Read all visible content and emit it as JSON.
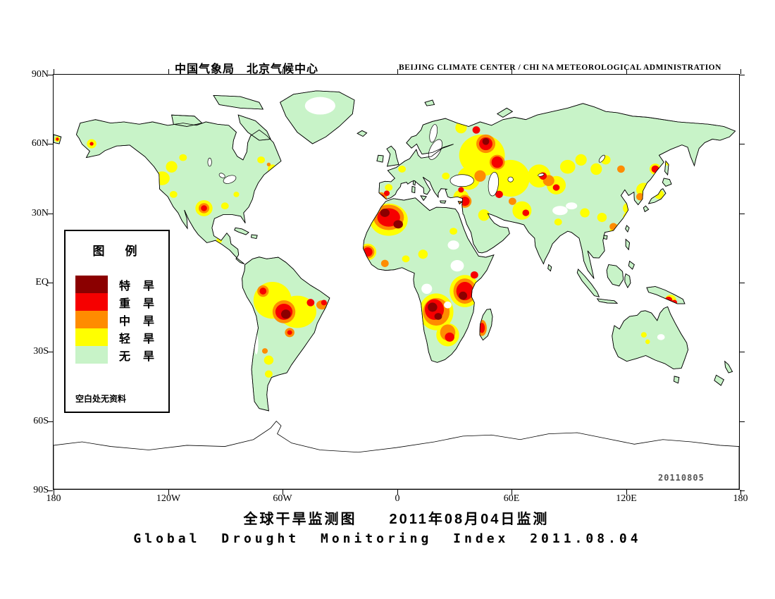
{
  "header": {
    "left": "中国气象局　北京气候中心",
    "right": "BEIJING CLIMATE CENTER / CHI NA METEOROLOGICAL ADMINISTRATION"
  },
  "map": {
    "datestamp": "20110805",
    "axis": {
      "lat_labels": [
        "90N",
        "60N",
        "30N",
        "EQ",
        "30S",
        "60S",
        "90S"
      ],
      "lon_labels": [
        "180",
        "120W",
        "60W",
        "0",
        "60E",
        "120E",
        "180"
      ]
    },
    "legend": {
      "title": "图　例",
      "note": "空白处无资料",
      "items": [
        {
          "label": "特　旱",
          "level": "extreme"
        },
        {
          "label": "重　旱",
          "level": "severe"
        },
        {
          "label": "中　旱",
          "level": "moderate"
        },
        {
          "label": "轻　旱",
          "level": "light"
        },
        {
          "label": "无　旱",
          "level": "none"
        }
      ]
    },
    "severity_colors": {
      "extreme": "#8b0000",
      "severe": "#f60000",
      "moderate": "#ff8c00",
      "light": "#ffff00",
      "none": "#c8f3c8"
    },
    "level_codes": {
      "L": "light",
      "M": "moderate",
      "S": "severe",
      "E": "extreme"
    },
    "drought_regions": [
      [
        2,
        28,
        1.5,
        1.2,
        "L"
      ],
      [
        2,
        28,
        0.8,
        0.7,
        "S"
      ],
      [
        20,
        30,
        2.5,
        2,
        "L"
      ],
      [
        20,
        30,
        1,
        0.8,
        "S"
      ],
      [
        57,
        45,
        4,
        3,
        "L"
      ],
      [
        62,
        40,
        3,
        2.5,
        "L"
      ],
      [
        68,
        36,
        2,
        1.5,
        "L"
      ],
      [
        55,
        58,
        5,
        4,
        "L"
      ],
      [
        57,
        59,
        1.5,
        1.2,
        "M"
      ],
      [
        63,
        52,
        2,
        1.5,
        "L"
      ],
      [
        79,
        58,
        4.5,
        3.5,
        "L"
      ],
      [
        79,
        58,
        2.8,
        2.2,
        "M"
      ],
      [
        79,
        58,
        1.6,
        1.3,
        "S"
      ],
      [
        90,
        57,
        2,
        1.5,
        "L"
      ],
      [
        96,
        52,
        1.5,
        1.2,
        "L"
      ],
      [
        74,
        70,
        2,
        1.5,
        "L"
      ],
      [
        87,
        72,
        1.5,
        1.2,
        "L"
      ],
      [
        109,
        37,
        2,
        1.5,
        "L"
      ],
      [
        115,
        41,
        2.5,
        2,
        "L"
      ],
      [
        113,
        39,
        1,
        0.8,
        "M"
      ],
      [
        115,
        98,
        10,
        8,
        "L"
      ],
      [
        128,
        103,
        10,
        7,
        "L"
      ],
      [
        110,
        94,
        3,
        2.5,
        "M"
      ],
      [
        110,
        94,
        1.8,
        1.5,
        "S"
      ],
      [
        121,
        103,
        6,
        5,
        "M"
      ],
      [
        121,
        103,
        4.5,
        3.5,
        "S"
      ],
      [
        122,
        104,
        2.5,
        2,
        "E"
      ],
      [
        135,
        99,
        2,
        1.6,
        "S"
      ],
      [
        141,
        100,
        3,
        2,
        "M"
      ],
      [
        142,
        99,
        1.5,
        1.2,
        "S"
      ],
      [
        124,
        112,
        2.5,
        2,
        "M"
      ],
      [
        124,
        112,
        1.3,
        1,
        "S"
      ],
      [
        113,
        124,
        2.5,
        2,
        "L"
      ],
      [
        113,
        130,
        2,
        1.6,
        "L"
      ],
      [
        116,
        135,
        1.5,
        1.2,
        "L"
      ],
      [
        111,
        120,
        1.5,
        1.2,
        "M"
      ],
      [
        176,
        63,
        10,
        7,
        "L"
      ],
      [
        176,
        62,
        8,
        5.5,
        "M"
      ],
      [
        176,
        62,
        6,
        4,
        "S"
      ],
      [
        174,
        60,
        2.5,
        1.8,
        "E"
      ],
      [
        181,
        65,
        2.5,
        1.8,
        "E"
      ],
      [
        172,
        53.5,
        3,
        2.4,
        "M"
      ],
      [
        172,
        53.5,
        2,
        1.6,
        "S"
      ],
      [
        175,
        51.5,
        1.5,
        1.2,
        "S"
      ],
      [
        176,
        49,
        2,
        1.5,
        "L"
      ],
      [
        165,
        77,
        4.5,
        3.6,
        "L"
      ],
      [
        165,
        77,
        3.5,
        2.8,
        "M"
      ],
      [
        165,
        77,
        2.5,
        2,
        "S"
      ],
      [
        174,
        82,
        2,
        1.6,
        "M"
      ],
      [
        185,
        80,
        2,
        1.5,
        "L"
      ],
      [
        194,
        78,
        2.5,
        2,
        "L"
      ],
      [
        210,
        68,
        2,
        1.5,
        "L"
      ],
      [
        201,
        103,
        9,
        8,
        "L"
      ],
      [
        201,
        103,
        7,
        6,
        "M"
      ],
      [
        200,
        102,
        5,
        4.5,
        "S"
      ],
      [
        199,
        101,
        2.5,
        2,
        "E"
      ],
      [
        202,
        105,
        2,
        1.5,
        "E"
      ],
      [
        207,
        113,
        6,
        5,
        "L"
      ],
      [
        207,
        112,
        4,
        3.5,
        "M"
      ],
      [
        208,
        114,
        2.5,
        2,
        "S"
      ],
      [
        216,
        94,
        8,
        7,
        "L"
      ],
      [
        216,
        94,
        6,
        5.5,
        "M"
      ],
      [
        216,
        94,
        4.5,
        4,
        "S"
      ],
      [
        215,
        96,
        2.2,
        1.8,
        "E"
      ],
      [
        221,
        87,
        2,
        1.6,
        "S"
      ],
      [
        225,
        110,
        2.5,
        3.5,
        "M"
      ],
      [
        225,
        110,
        1.5,
        2.2,
        "S"
      ],
      [
        183,
        41,
        2,
        1.5,
        "L"
      ],
      [
        206,
        44,
        2,
        1.5,
        "L"
      ],
      [
        214,
        50,
        1.5,
        1.2,
        "S"
      ],
      [
        225,
        35,
        12,
        9,
        "L"
      ],
      [
        240,
        45,
        10,
        8,
        "L"
      ],
      [
        218,
        45,
        6,
        5,
        "L"
      ],
      [
        214,
        23,
        3,
        2.5,
        "L"
      ],
      [
        227,
        30,
        5,
        4,
        "M"
      ],
      [
        227,
        30,
        3.5,
        2.8,
        "S"
      ],
      [
        227,
        29,
        1.8,
        1.5,
        "E"
      ],
      [
        222,
        24,
        2,
        1.6,
        "S"
      ],
      [
        233,
        38,
        4,
        3.2,
        "M"
      ],
      [
        233,
        38,
        3,
        2.5,
        "S"
      ],
      [
        224,
        44,
        3,
        2.5,
        "M"
      ],
      [
        214,
        53,
        4,
        3,
        "L"
      ],
      [
        216,
        55,
        3.5,
        2.8,
        "M"
      ],
      [
        216,
        55,
        2.5,
        2,
        "S"
      ],
      [
        234,
        52,
        2,
        1.6,
        "S"
      ],
      [
        226,
        61,
        3,
        2.5,
        "L"
      ],
      [
        255,
        44,
        6,
        5,
        "L"
      ],
      [
        264,
        48,
        5,
        4,
        "L"
      ],
      [
        257,
        44,
        2,
        1.6,
        "S"
      ],
      [
        264,
        49,
        1.8,
        1.4,
        "S"
      ],
      [
        260,
        46,
        3,
        2.4,
        "M"
      ],
      [
        246,
        59,
        5,
        4,
        "L"
      ],
      [
        248,
        60,
        1.8,
        1.4,
        "S"
      ],
      [
        241,
        55,
        2,
        1.6,
        "M"
      ],
      [
        270,
        40,
        4,
        3,
        "L"
      ],
      [
        277,
        37,
        3,
        2.5,
        "L"
      ],
      [
        285,
        41,
        3,
        2.5,
        "L"
      ],
      [
        290,
        37,
        2.5,
        2,
        "L"
      ],
      [
        298,
        41,
        2,
        1.6,
        "M"
      ],
      [
        316,
        41,
        3,
        2.4,
        "L"
      ],
      [
        316,
        41,
        2,
        1.6,
        "S"
      ],
      [
        323,
        37,
        3,
        2.5,
        "L"
      ],
      [
        330,
        41,
        2,
        1.6,
        "L"
      ],
      [
        340,
        38,
        2.5,
        2,
        "L"
      ],
      [
        346,
        36,
        3,
        2.5,
        "L"
      ],
      [
        350,
        40,
        2,
        1.6,
        "L"
      ],
      [
        310,
        50,
        4,
        3,
        "L"
      ],
      [
        308,
        53,
        2,
        1.6,
        "M"
      ],
      [
        318,
        52,
        2.5,
        2,
        "L"
      ],
      [
        302,
        58,
        3,
        2.5,
        "L"
      ],
      [
        296,
        68,
        4,
        3,
        "L"
      ],
      [
        297,
        69,
        1.8,
        1.4,
        "S"
      ],
      [
        294,
        66,
        2,
        1.6,
        "M"
      ],
      [
        302,
        62,
        3,
        2.5,
        "L"
      ],
      [
        288,
        62,
        2.5,
        2,
        "L"
      ],
      [
        279,
        60,
        2.5,
        2,
        "L"
      ],
      [
        265,
        64,
        2,
        1.5,
        "L"
      ],
      [
        292,
        76,
        2.4,
        2,
        "L"
      ],
      [
        292,
        76,
        1.6,
        1.3,
        "S"
      ],
      [
        286,
        88,
        1.4,
        1.1,
        "S"
      ],
      [
        324,
        98,
        3,
        2.4,
        "L"
      ],
      [
        323,
        98,
        2,
        1.6,
        "S"
      ],
      [
        326,
        99,
        1.5,
        1.2,
        "S"
      ],
      [
        310,
        113,
        1.5,
        1.2,
        "L"
      ],
      [
        312,
        116,
        1.2,
        1,
        "L"
      ]
    ]
  },
  "footer": {
    "title_cn": "全球干旱监测图　　2011年08月04日监测",
    "title_en": "Global Drought Monitoring Index  2011.08.04"
  }
}
